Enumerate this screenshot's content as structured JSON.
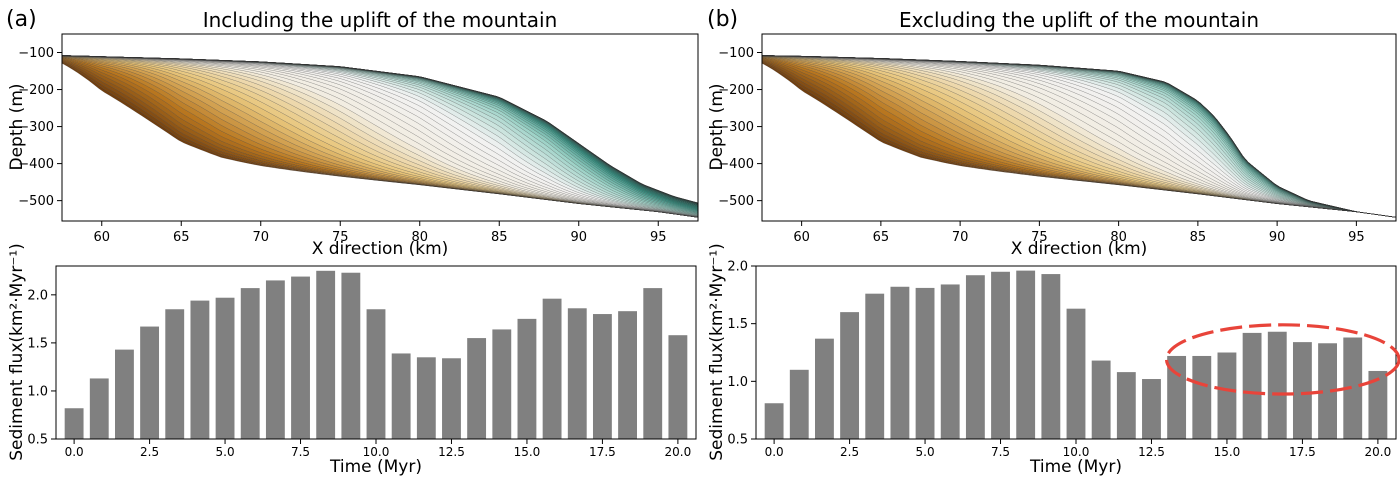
{
  "panels": [
    {
      "letter": "(a)",
      "title": "Including the uplift of the mountain"
    },
    {
      "letter": "(b)",
      "title": "Excluding the uplift of the mountain"
    }
  ],
  "colors": {
    "bar": "#808080",
    "ellipse": "#e8443a",
    "stratigraphy_ramp": [
      "#6b3a0e",
      "#b8761f",
      "#e8c67c",
      "#f2ede2",
      "#f2f2f2",
      "#9fd3c8",
      "#2f8f80",
      "#0e554a",
      "#032e26"
    ],
    "layer_line": "#333333"
  },
  "chart_data": [
    {
      "type": "area",
      "panel": "a",
      "title": "Including the uplift of the mountain",
      "xlabel": "X direction (km)",
      "ylabel": "Depth (m)",
      "xlim": [
        57.5,
        97.5
      ],
      "ylim": [
        -555,
        -50
      ],
      "xticks": [
        60,
        65,
        70,
        75,
        80,
        85,
        90,
        95
      ],
      "yticks": [
        -100,
        -200,
        -300,
        -400,
        -500
      ],
      "grid": false,
      "legend": "none",
      "layer_count": 60,
      "basement": {
        "x": [
          57.5,
          60,
          65,
          67.5,
          70,
          75,
          80,
          85,
          90,
          95,
          97.5
        ],
        "y": [
          -150,
          -250,
          -370,
          -400,
          -415,
          -437,
          -458,
          -482,
          -508,
          -530,
          -545
        ]
      },
      "final_surface": {
        "x": [
          57.5,
          60,
          65,
          70,
          75,
          80,
          85,
          88,
          90,
          92,
          94,
          96,
          97.5
        ],
        "y": [
          -108,
          -111,
          -117,
          -125,
          -138,
          -165,
          -220,
          -285,
          -345,
          -405,
          -455,
          -488,
          -505
        ]
      }
    },
    {
      "type": "area",
      "panel": "b",
      "title": "Excluding the uplift of the mountain",
      "xlabel": "X direction (km)",
      "ylabel": "Depth (m)",
      "xlim": [
        57.5,
        97.5
      ],
      "ylim": [
        -555,
        -50
      ],
      "xticks": [
        60,
        65,
        70,
        75,
        80,
        85,
        90,
        95
      ],
      "yticks": [
        -100,
        -200,
        -300,
        -400,
        -500
      ],
      "grid": false,
      "legend": "none",
      "layer_count": 60,
      "basement": {
        "x": [
          57.5,
          60,
          65,
          67.5,
          70,
          75,
          80,
          85,
          90,
          95,
          97.5
        ],
        "y": [
          -150,
          -250,
          -370,
          -400,
          -415,
          -437,
          -458,
          -482,
          -508,
          -530,
          -545
        ]
      },
      "final_surface": {
        "x": [
          57.5,
          60,
          65,
          70,
          75,
          80,
          83,
          85,
          86,
          87,
          88,
          90,
          92,
          95,
          97.5
        ],
        "y": [
          -108,
          -110,
          -116,
          -124,
          -134,
          -150,
          -180,
          -230,
          -270,
          -325,
          -390,
          -460,
          -500,
          -530,
          -545
        ]
      }
    },
    {
      "type": "bar",
      "panel": "a",
      "xlabel": "Time (Myr)",
      "ylabel": "Sediment flux(km²·Myr⁻¹)",
      "xlim": [
        -0.6,
        20.6
      ],
      "ylim": [
        0.5,
        2.3
      ],
      "xticks": [
        0.0,
        2.5,
        5.0,
        7.5,
        10.0,
        12.5,
        15.0,
        17.5,
        20.0
      ],
      "yticks": [
        0.5,
        1.0,
        1.5,
        2.0
      ],
      "grid": false,
      "x": [
        0,
        0.833,
        1.667,
        2.5,
        3.333,
        4.167,
        5.0,
        5.833,
        6.667,
        7.5,
        8.333,
        9.167,
        10.0,
        10.833,
        11.667,
        12.5,
        13.333,
        14.167,
        15.0,
        15.833,
        16.667,
        17.5,
        18.333,
        19.167,
        20.0
      ],
      "values": [
        0.82,
        1.13,
        1.43,
        1.67,
        1.85,
        1.94,
        1.97,
        2.07,
        2.15,
        2.19,
        2.25,
        2.23,
        1.85,
        1.39,
        1.35,
        1.34,
        1.55,
        1.64,
        1.75,
        1.96,
        1.86,
        1.8,
        1.83,
        2.07,
        1.58
      ]
    },
    {
      "type": "bar",
      "panel": "b",
      "xlabel": "Time (Myr)",
      "ylabel": "Sediment flux(km²·Myr⁻¹)",
      "xlim": [
        -0.6,
        20.6
      ],
      "ylim": [
        0.5,
        2.0
      ],
      "xticks": [
        0.0,
        2.5,
        5.0,
        7.5,
        10.0,
        12.5,
        15.0,
        17.5,
        20.0
      ],
      "yticks": [
        0.5,
        1.0,
        1.5,
        2.0
      ],
      "grid": false,
      "x": [
        0,
        0.833,
        1.667,
        2.5,
        3.333,
        4.167,
        5.0,
        5.833,
        6.667,
        7.5,
        8.333,
        9.167,
        10.0,
        10.833,
        11.667,
        12.5,
        13.333,
        14.167,
        15.0,
        15.833,
        16.667,
        17.5,
        18.333,
        19.167,
        20.0
      ],
      "values": [
        0.81,
        1.1,
        1.37,
        1.6,
        1.76,
        1.82,
        1.81,
        1.84,
        1.92,
        1.95,
        1.96,
        1.93,
        1.63,
        1.18,
        1.08,
        1.02,
        1.22,
        1.22,
        1.25,
        1.42,
        1.43,
        1.34,
        1.33,
        1.38,
        1.09
      ],
      "annotation": {
        "shape": "dashed-ellipse",
        "center_x": 16.85,
        "center_y": 1.19,
        "half_width_x": 3.85,
        "half_height_y": 0.3
      }
    }
  ]
}
